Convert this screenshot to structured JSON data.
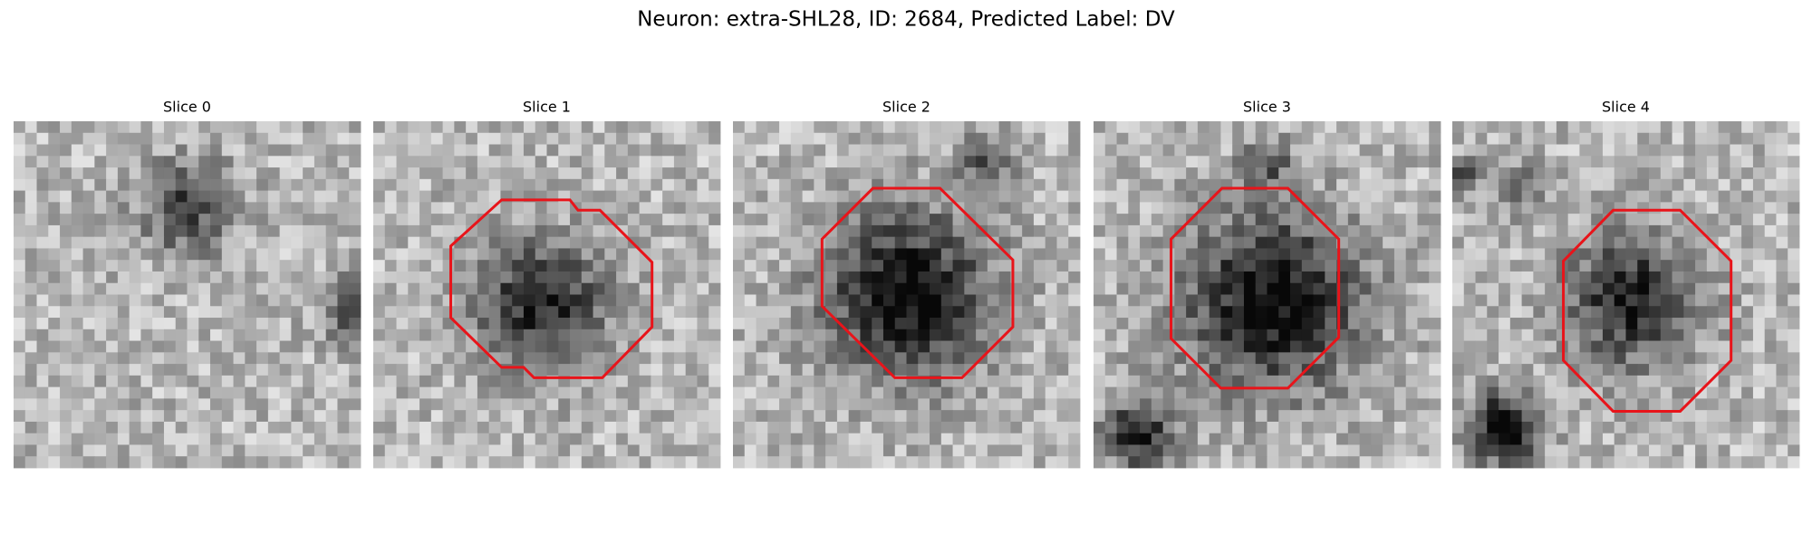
{
  "header": {
    "title": "Neuron: extra-SHL28, ID: 2684, Predicted Label: DV"
  },
  "panels": [
    {
      "title": "Slice 0"
    },
    {
      "title": "Slice 1"
    },
    {
      "title": "Slice 2"
    },
    {
      "title": "Slice 3"
    },
    {
      "title": "Slice 4"
    }
  ]
}
